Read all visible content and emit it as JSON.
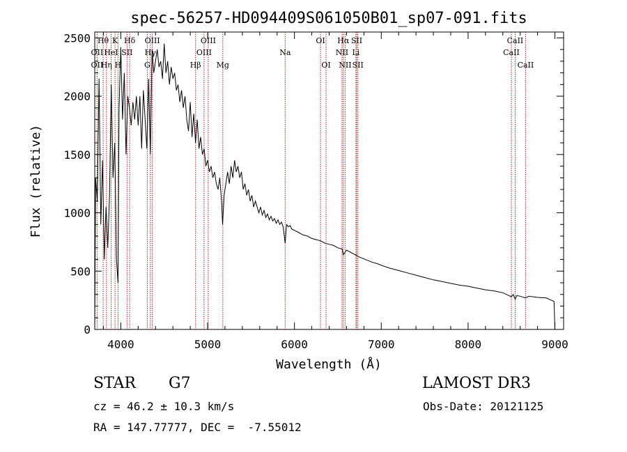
{
  "chart_data": {
    "type": "line",
    "title": "spec-56257-HD094409S061050B01_sp07-091.fits",
    "xlabel": "Wavelength (Å)",
    "ylabel": "Flux (relative)",
    "xlim": [
      3700,
      9100
    ],
    "ylim": [
      0,
      2550
    ],
    "xticks": [
      4000,
      5000,
      6000,
      7000,
      8000,
      9000
    ],
    "yticks": [
      0,
      500,
      1000,
      1500,
      2000,
      2500
    ],
    "grid": false,
    "line_color": "#000000",
    "marker_color": "#b22222",
    "series": [
      {
        "name": "spectrum",
        "x": [
          3700,
          3710,
          3730,
          3750,
          3770,
          3790,
          3810,
          3830,
          3850,
          3870,
          3890,
          3910,
          3930,
          3950,
          3968,
          3980,
          4000,
          4020,
          4040,
          4060,
          4080,
          4100,
          4120,
          4140,
          4160,
          4180,
          4200,
          4220,
          4240,
          4260,
          4280,
          4300,
          4320,
          4340,
          4360,
          4380,
          4400,
          4420,
          4440,
          4460,
          4480,
          4500,
          4520,
          4540,
          4560,
          4580,
          4600,
          4620,
          4640,
          4660,
          4680,
          4700,
          4720,
          4740,
          4760,
          4780,
          4800,
          4820,
          4840,
          4861,
          4880,
          4900,
          4920,
          4940,
          4960,
          4980,
          5000,
          5020,
          5040,
          5060,
          5080,
          5100,
          5120,
          5140,
          5160,
          5172,
          5190,
          5210,
          5230,
          5250,
          5270,
          5290,
          5310,
          5330,
          5350,
          5370,
          5390,
          5410,
          5430,
          5450,
          5470,
          5490,
          5510,
          5530,
          5550,
          5570,
          5590,
          5610,
          5630,
          5650,
          5670,
          5690,
          5710,
          5730,
          5750,
          5770,
          5790,
          5810,
          5830,
          5850,
          5870,
          5893,
          5910,
          5930,
          5950,
          5970,
          6000,
          6050,
          6100,
          6150,
          6200,
          6250,
          6300,
          6350,
          6400,
          6450,
          6500,
          6550,
          6563,
          6600,
          6650,
          6700,
          6750,
          6800,
          6850,
          6900,
          6950,
          7000,
          7100,
          7200,
          7300,
          7400,
          7500,
          7600,
          7700,
          7800,
          7900,
          8000,
          8100,
          8200,
          8300,
          8400,
          8498,
          8520,
          8542,
          8560,
          8600,
          8662,
          8700,
          8800,
          8900,
          8990,
          9000
        ],
        "values": [
          0,
          1300,
          1100,
          2150,
          900,
          1450,
          600,
          1050,
          700,
          1150,
          2100,
          1300,
          1600,
          600,
          400,
          1900,
          2420,
          1800,
          2200,
          1500,
          2000,
          1900,
          1750,
          1950,
          1800,
          2000,
          1750,
          2000,
          1550,
          2050,
          1800,
          1550,
          2150,
          1500,
          2400,
          2200,
          2300,
          2400,
          2250,
          2300,
          2150,
          2450,
          2200,
          2300,
          2100,
          2250,
          2150,
          2200,
          2050,
          2100,
          1950,
          2050,
          1900,
          2000,
          1800,
          1700,
          1950,
          1650,
          1850,
          1600,
          1800,
          1550,
          1650,
          1500,
          1550,
          1400,
          1450,
          1350,
          1400,
          1300,
          1350,
          1250,
          1200,
          1300,
          1100,
          900,
          1150,
          1250,
          1350,
          1250,
          1400,
          1300,
          1450,
          1350,
          1400,
          1300,
          1350,
          1200,
          1250,
          1150,
          1200,
          1100,
          1150,
          1050,
          1100,
          1050,
          1000,
          1050,
          980,
          1020,
          960,
          990,
          940,
          970,
          930,
          950,
          910,
          940,
          900,
          920,
          880,
          740,
          900,
          880,
          890,
          860,
          850,
          830,
          810,
          800,
          780,
          770,
          760,
          740,
          730,
          720,
          700,
          690,
          640,
          680,
          660,
          640,
          620,
          605,
          590,
          575,
          565,
          550,
          525,
          505,
          485,
          465,
          445,
          425,
          410,
          395,
          380,
          370,
          355,
          340,
          330,
          315,
          280,
          300,
          260,
          290,
          285,
          270,
          285,
          275,
          270,
          240,
          0
        ]
      }
    ],
    "spectral_lines": [
      {
        "label": "Hθ",
        "x": 3797,
        "row": 0
      },
      {
        "label": "OII",
        "x": 3727,
        "row": 1
      },
      {
        "label": "OII",
        "x": 3727,
        "row": 2
      },
      {
        "label": "K",
        "x": 3934,
        "row": 0
      },
      {
        "label": "H",
        "x": 3968,
        "row": 2
      },
      {
        "label": "Hδ",
        "x": 4102,
        "row": 0
      },
      {
        "label": "HeI",
        "x": 3889,
        "row": 1
      },
      {
        "label": "Hη",
        "x": 3835,
        "row": 2
      },
      {
        "label": "SII",
        "x": 4072,
        "row": 1
      },
      {
        "label": "OIII",
        "x": 4363,
        "row": 0
      },
      {
        "label": "Hγ",
        "x": 4340,
        "row": 1
      },
      {
        "label": "G",
        "x": 4305,
        "row": 2
      },
      {
        "label": "OIII",
        "x": 5007,
        "row": 0
      },
      {
        "label": "OIII",
        "x": 4959,
        "row": 1
      },
      {
        "label": "Hβ",
        "x": 4861,
        "row": 2
      },
      {
        "label": "Mg",
        "x": 5175,
        "row": 2
      },
      {
        "label": "Na",
        "x": 5893,
        "row": 1
      },
      {
        "label": "OI",
        "x": 6300,
        "row": 0
      },
      {
        "label": "OI",
        "x": 6364,
        "row": 2
      },
      {
        "label": "Hα",
        "x": 6563,
        "row": 0
      },
      {
        "label": "SII",
        "x": 6717,
        "row": 0
      },
      {
        "label": "NII",
        "x": 6548,
        "row": 1
      },
      {
        "label": "Li",
        "x": 6708,
        "row": 1
      },
      {
        "label": "NII",
        "x": 6584,
        "row": 2
      },
      {
        "label": "SII",
        "x": 6731,
        "row": 2
      },
      {
        "label": "CaII",
        "x": 8542,
        "row": 0
      },
      {
        "label": "CaII",
        "x": 8498,
        "row": 1
      },
      {
        "label": "CaII",
        "x": 8662,
        "row": 2
      }
    ]
  },
  "info": {
    "object_class": "STAR",
    "subclass": "G7",
    "survey": "LAMOST DR3",
    "cz": "cz = 46.2 ± 10.3 km/s",
    "obs_date": "Obs-Date: 20121125",
    "coords": "RA = 147.77777, DEC =  -7.55012"
  }
}
